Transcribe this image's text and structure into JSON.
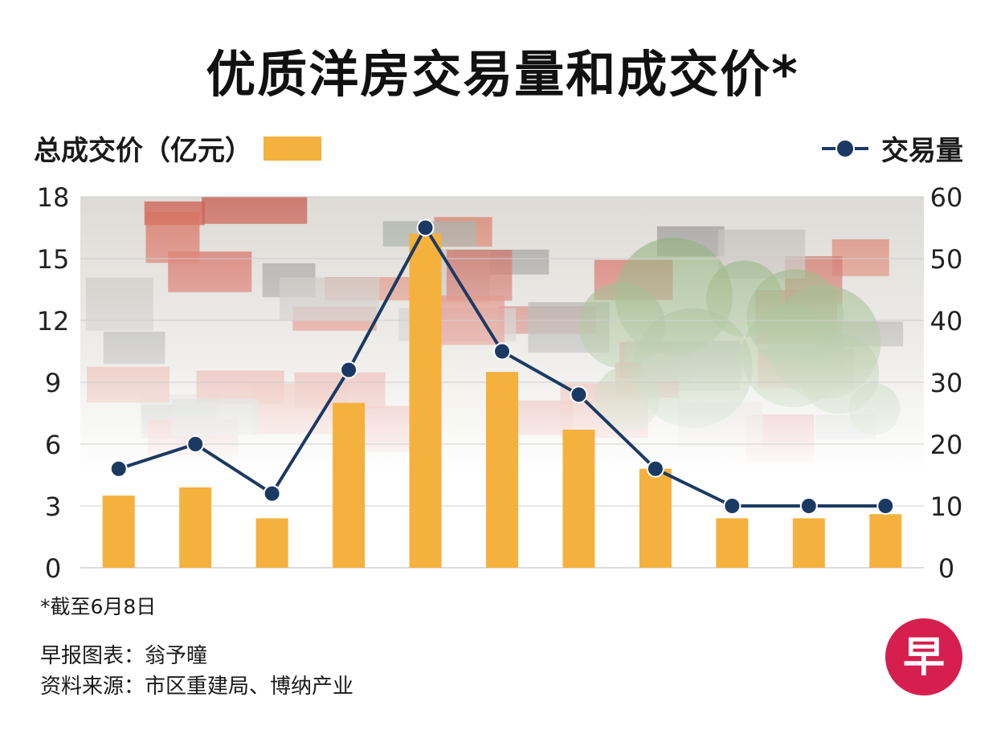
{
  "title": "优质洋房交易量和成交价*",
  "legend": {
    "left_label": "总成交价（亿元）",
    "right_label": "交易量"
  },
  "footnote": "*截至6月8日",
  "credits": {
    "chart_by": "早报图表：翁予曈",
    "source": "资料来源：市区重建局、博纳产业"
  },
  "logo_text": "早",
  "colors": {
    "bar": "#f5b13d",
    "line": "#1b3a63",
    "grid": "#cfcfcf",
    "logo": "#d61f4e"
  },
  "chart_data": {
    "type": "bar+line",
    "categories": [
      "",
      "",
      "",
      "",
      "",
      "",
      "",
      "",
      "",
      "",
      ""
    ],
    "y_left": {
      "label": "总成交价（亿元）",
      "lim": [
        0,
        18
      ],
      "ticks": [
        0,
        3,
        6,
        9,
        12,
        15,
        18
      ]
    },
    "y_right": {
      "label": "交易量",
      "lim": [
        0,
        60
      ],
      "ticks": [
        0,
        10,
        20,
        30,
        40,
        50,
        60
      ]
    },
    "series": [
      {
        "name": "总成交价（亿元）",
        "type": "bar",
        "axis": "left",
        "values": [
          3.5,
          3.9,
          2.4,
          8.0,
          16.2,
          9.5,
          6.7,
          4.8,
          2.4,
          2.4,
          2.6
        ]
      },
      {
        "name": "交易量",
        "type": "line",
        "axis": "right",
        "values": [
          16,
          20,
          12,
          32,
          55,
          35,
          28,
          16,
          10,
          10,
          10
        ]
      }
    ],
    "grid": true,
    "background": "photo of landed houses (terrace & semi-detached rooftops)"
  }
}
